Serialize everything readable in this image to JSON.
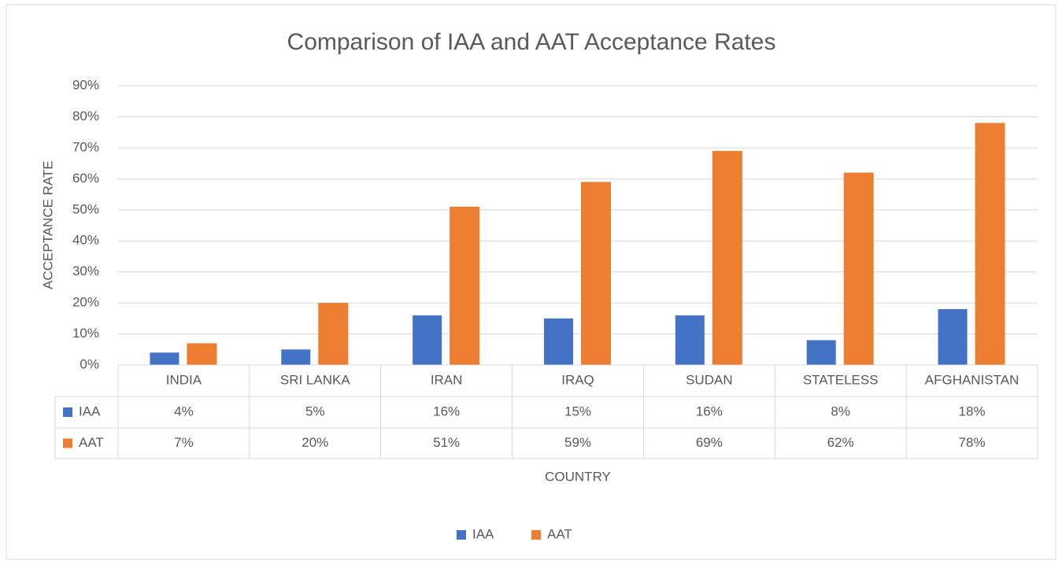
{
  "chart_data": {
    "type": "bar",
    "title": "Comparison of IAA and AAT Acceptance Rates",
    "x_label": "COUNTRY",
    "y_label": "ACCEPTANCE  RATE",
    "categories": [
      "INDIA",
      "SRI LANKA",
      "IRAN",
      "IRAQ",
      "SUDAN",
      "STATELESS",
      "AFGHANISTAN"
    ],
    "series": [
      {
        "name": "IAA",
        "color": "#4472c4",
        "values": [
          4,
          5,
          16,
          15,
          16,
          8,
          18
        ],
        "value_labels": [
          "4%",
          "5%",
          "16%",
          "15%",
          "16%",
          "8%",
          "18%"
        ]
      },
      {
        "name": "AAT",
        "color": "#ed7d31",
        "values": [
          7,
          20,
          51,
          59,
          69,
          62,
          78
        ],
        "value_labels": [
          "7%",
          "20%",
          "51%",
          "59%",
          "69%",
          "62%",
          "78%"
        ]
      }
    ],
    "ylim": [
      0,
      90
    ],
    "yticks": [
      {
        "value": 0,
        "label": "0%"
      },
      {
        "value": 10,
        "label": "10%"
      },
      {
        "value": 20,
        "label": "20%"
      },
      {
        "value": 30,
        "label": "30%"
      },
      {
        "value": 40,
        "label": "40%"
      },
      {
        "value": 50,
        "label": "50%"
      },
      {
        "value": 60,
        "label": "60%"
      },
      {
        "value": 70,
        "label": "70%"
      },
      {
        "value": 80,
        "label": "80%"
      },
      {
        "value": 90,
        "label": "90%"
      }
    ],
    "grid": true,
    "legend": "bottom"
  }
}
